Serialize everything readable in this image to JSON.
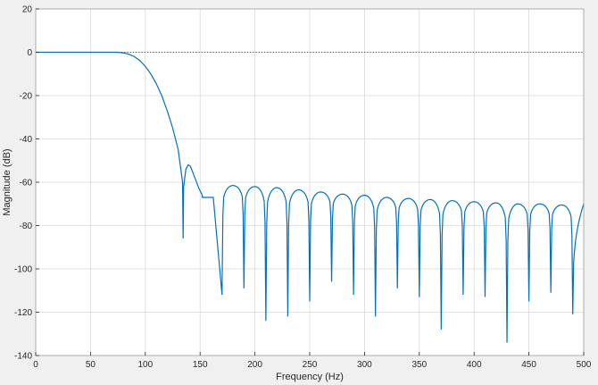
{
  "chart_data": {
    "type": "line",
    "title": "",
    "xlabel": "Frequency (Hz)",
    "ylabel": "Magnitude (dB)",
    "xlim": [
      0,
      500
    ],
    "ylim": [
      -140,
      20
    ],
    "x_ticks": [
      "0",
      "50",
      "100",
      "150",
      "200",
      "250",
      "300",
      "350",
      "400",
      "450",
      "500"
    ],
    "y_ticks": [
      "20",
      "0",
      "-20",
      "-40",
      "-60",
      "-80",
      "-100",
      "-120",
      "-140"
    ],
    "grid": true,
    "reference_line": {
      "y": 0,
      "style": "dotted"
    },
    "colors": {
      "series": "#0072BD",
      "grid": "#d9d9d9",
      "plot_bg": "#ffffff",
      "page_bg": "#f0f0f0",
      "reference": "#555555"
    },
    "series": [
      {
        "passband": {
          "x_end": 75,
          "y": 0
        },
        "rolloff": [
          [
            75,
            0
          ],
          [
            80,
            -0.3
          ],
          [
            85,
            -0.9
          ],
          [
            90,
            -2
          ],
          [
            95,
            -3.8
          ],
          [
            100,
            -6.5
          ],
          [
            105,
            -10
          ],
          [
            110,
            -14.5
          ],
          [
            115,
            -20
          ],
          [
            120,
            -27
          ],
          [
            125,
            -35
          ],
          [
            130,
            -45
          ],
          [
            134,
            -60
          ]
        ],
        "first_null": {
          "x": 134.5,
          "y": -86
        },
        "first_sidelobe": [
          [
            135,
            -62
          ],
          [
            137,
            -54
          ],
          [
            139,
            -52
          ],
          [
            141,
            -52.5
          ],
          [
            143,
            -55
          ],
          [
            146,
            -59
          ],
          [
            149,
            -63
          ],
          [
            152,
            -66
          ]
        ],
        "shelf": {
          "x_start": 152,
          "x_end": 162,
          "y": -67
        },
        "lobes": {
          "nulls_x": [
            162,
            170,
            190,
            210,
            230,
            250,
            270,
            290,
            310,
            330,
            350,
            370,
            390,
            410,
            430,
            450,
            470,
            490
          ],
          "nulls_y": [
            -66,
            -112,
            -109,
            -124,
            -122,
            -115,
            -106,
            -112,
            -122,
            -109,
            -113,
            -128,
            -112,
            -113,
            -134,
            -115,
            -111,
            -121
          ],
          "peaks_y": [
            -63,
            -61.5,
            -62,
            -62.5,
            -63.5,
            -64.5,
            -65.5,
            -66,
            -67,
            -67.5,
            -68,
            -68.5,
            -69,
            -69.5,
            -70,
            -70,
            -70.5
          ]
        },
        "end": {
          "x": 500,
          "y": -70
        }
      }
    ]
  }
}
